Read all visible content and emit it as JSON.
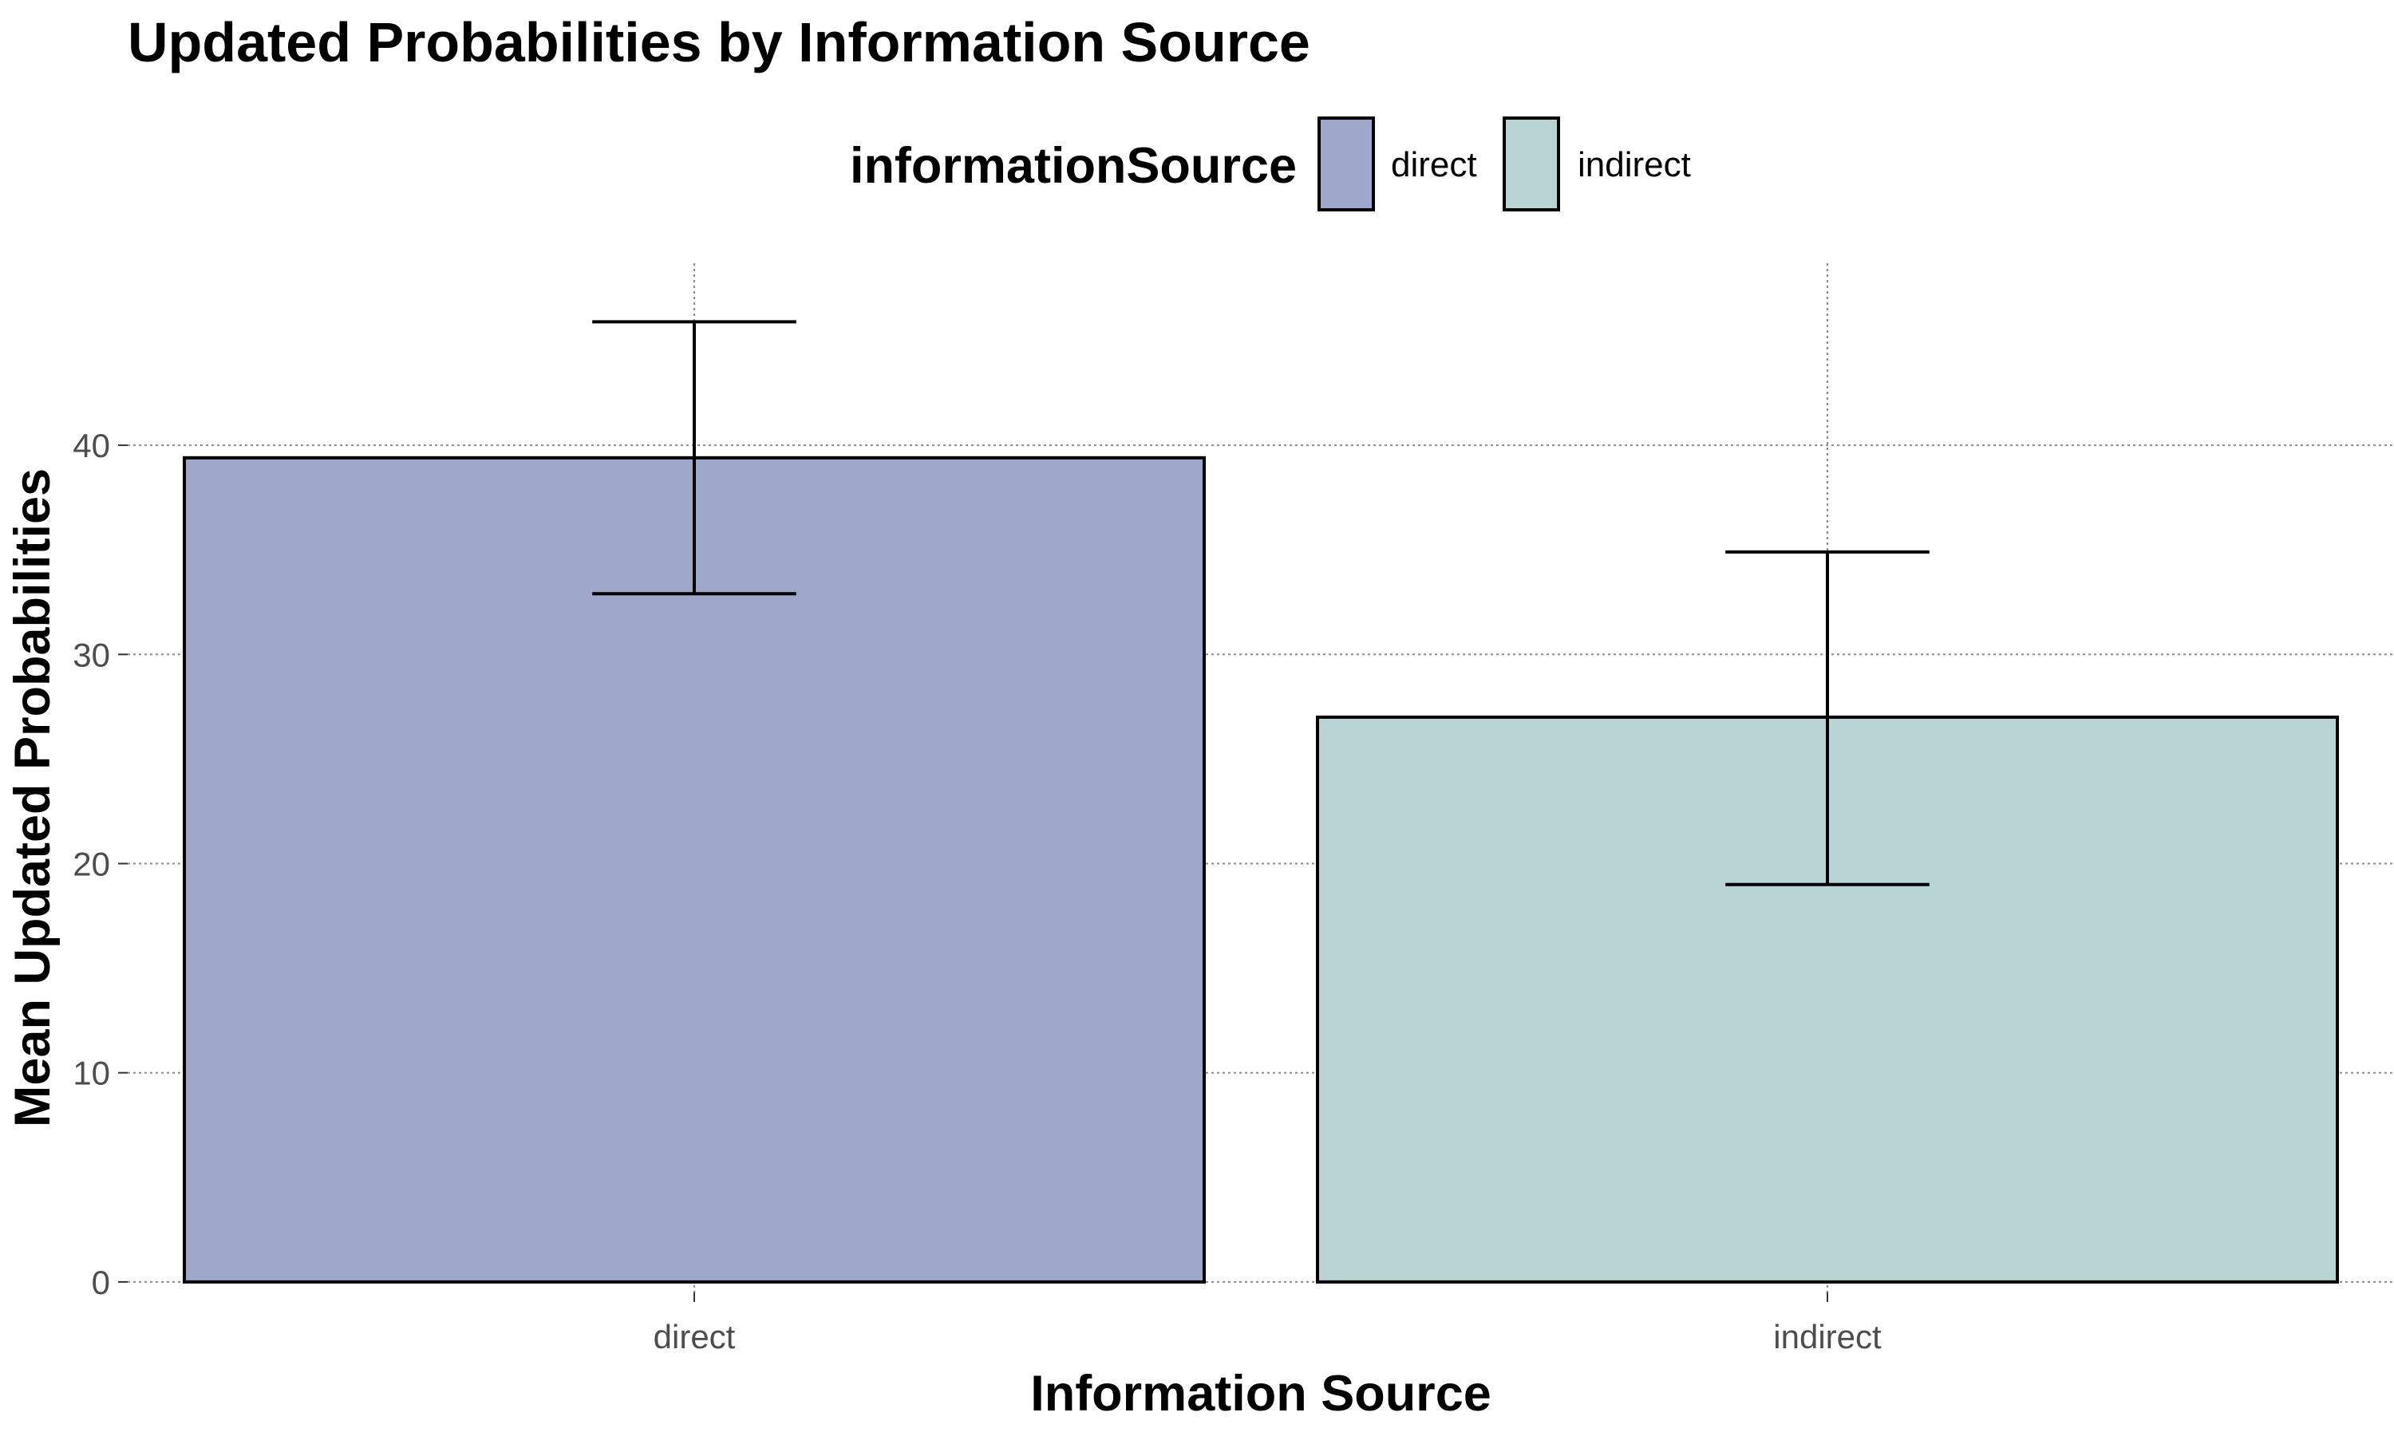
{
  "chart_data": {
    "type": "bar",
    "title": "Updated Probabilities by Information Source",
    "xlabel": "Information Source",
    "ylabel": "Mean Updated Probabilities",
    "categories": [
      "direct",
      "indirect"
    ],
    "values": [
      39.4,
      27.0
    ],
    "error_low": [
      32.9,
      19.0
    ],
    "error_high": [
      45.9,
      34.9
    ],
    "ylim": [
      -0.5,
      48.7
    ],
    "yticks": [
      0,
      10,
      20,
      30,
      40
    ],
    "colors": [
      "#9fa7cb",
      "#b9d4d5"
    ],
    "legend": {
      "title": "informationSource",
      "position": "top",
      "entries": [
        "direct",
        "indirect"
      ]
    },
    "grid": true
  }
}
